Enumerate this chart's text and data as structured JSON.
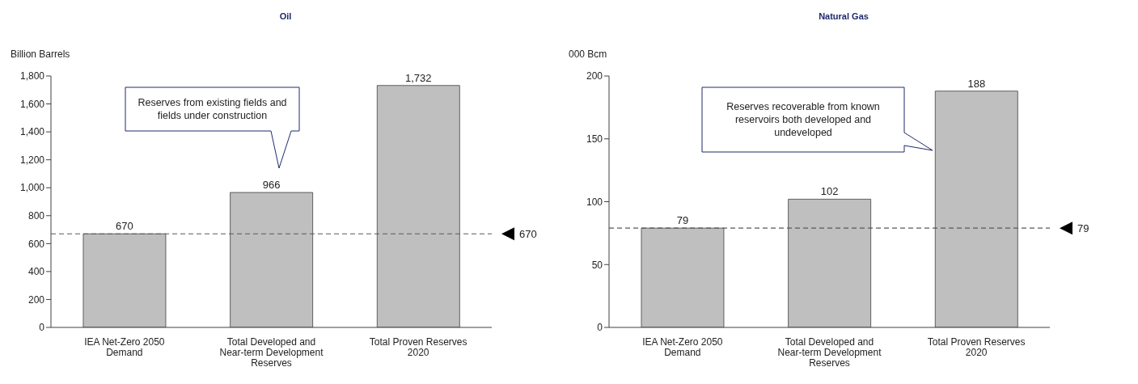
{
  "chart_data": [
    {
      "type": "bar",
      "title": "Oil",
      "ylabel": "Billion Barrels",
      "categories": [
        "IEA Net-Zero 2050 Demand",
        "Total Developed and Near-term Development Reserves",
        "Total Proven Reserves 2020"
      ],
      "values": [
        670,
        966,
        1732
      ],
      "value_labels": [
        "670",
        "966",
        "1,732"
      ],
      "color": "#bfbfbf",
      "ylim": [
        0,
        1800
      ],
      "yticks": [
        {
          "value": 0,
          "label": "0"
        },
        {
          "value": 200,
          "label": "200"
        },
        {
          "value": 400,
          "label": "400"
        },
        {
          "value": 600,
          "label": "600"
        },
        {
          "value": 800,
          "label": "800"
        },
        {
          "value": 1000,
          "label": "1,000"
        },
        {
          "value": 1200,
          "label": "1,200"
        },
        {
          "value": 1400,
          "label": "1,400"
        },
        {
          "value": 1600,
          "label": "1,600"
        },
        {
          "value": 1800,
          "label": "1,800"
        }
      ],
      "ref_lines": [
        {
          "axis": "y",
          "value": 670,
          "label": "670",
          "line_style": "dashed",
          "color": "#595959"
        }
      ],
      "annotations": [
        "Reserves from existing fields and fields under construction"
      ]
    },
    {
      "type": "bar",
      "title": "Natural Gas",
      "ylabel": "000 Bcm",
      "categories": [
        "IEA Net-Zero 2050 Demand",
        "Total Developed and Near-term Development Reserves",
        "Total Proven Reserves 2020"
      ],
      "values": [
        79,
        102,
        188
      ],
      "color": "#bfbfbf",
      "ylim": [
        0,
        200
      ],
      "yticks": [
        0,
        50,
        100,
        150,
        200
      ],
      "data_labels": true,
      "ref_lines": [
        {
          "axis": "y",
          "value": 79,
          "label": "79",
          "line_style": "dashed",
          "color": "#595959"
        }
      ],
      "annotations": [
        "Reserves recoverable from known reservoirs both developed and undeveloped"
      ]
    }
  ]
}
